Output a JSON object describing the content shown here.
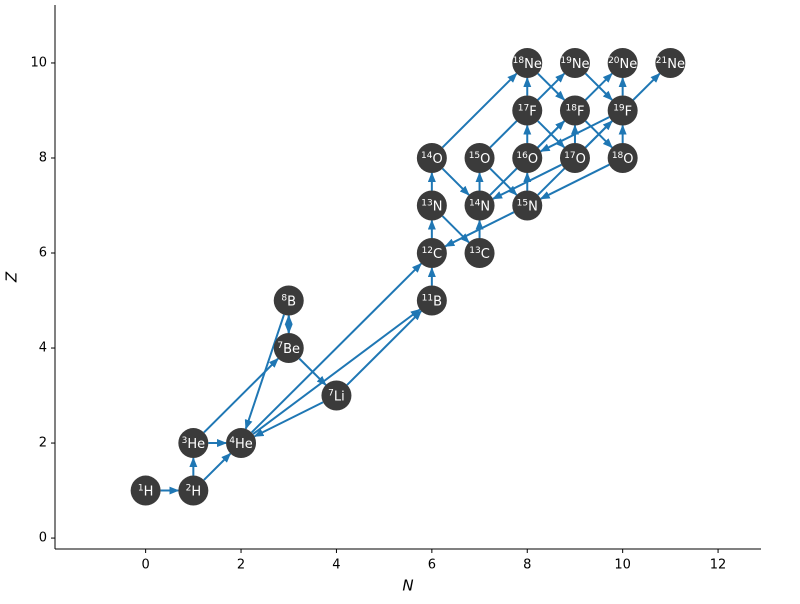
{
  "chart_data": {
    "type": "network",
    "xlabel": "N",
    "ylabel": "Z",
    "xlim": [
      -1.9,
      12.9
    ],
    "ylim": [
      -0.23,
      11.22
    ],
    "xticks": [
      0,
      2,
      4,
      6,
      8,
      10,
      12
    ],
    "yticks": [
      0,
      2,
      4,
      6,
      8,
      10
    ],
    "node_color": "#3b3b3b",
    "edge_color": "#1f77b4",
    "nodes": [
      {
        "mass": 1,
        "element": "H",
        "N": 0,
        "Z": 1
      },
      {
        "mass": 2,
        "element": "H",
        "N": 1,
        "Z": 1
      },
      {
        "mass": 3,
        "element": "He",
        "N": 1,
        "Z": 2
      },
      {
        "mass": 4,
        "element": "He",
        "N": 2,
        "Z": 2
      },
      {
        "mass": 7,
        "element": "Li",
        "N": 4,
        "Z": 3
      },
      {
        "mass": 7,
        "element": "Be",
        "N": 3,
        "Z": 4
      },
      {
        "mass": 8,
        "element": "B",
        "N": 3,
        "Z": 5
      },
      {
        "mass": 11,
        "element": "B",
        "N": 6,
        "Z": 5
      },
      {
        "mass": 12,
        "element": "C",
        "N": 6,
        "Z": 6
      },
      {
        "mass": 13,
        "element": "C",
        "N": 7,
        "Z": 6
      },
      {
        "mass": 13,
        "element": "N",
        "N": 6,
        "Z": 7
      },
      {
        "mass": 14,
        "element": "N",
        "N": 7,
        "Z": 7
      },
      {
        "mass": 15,
        "element": "N",
        "N": 8,
        "Z": 7
      },
      {
        "mass": 14,
        "element": "O",
        "N": 6,
        "Z": 8
      },
      {
        "mass": 15,
        "element": "O",
        "N": 7,
        "Z": 8
      },
      {
        "mass": 16,
        "element": "O",
        "N": 8,
        "Z": 8
      },
      {
        "mass": 17,
        "element": "O",
        "N": 9,
        "Z": 8
      },
      {
        "mass": 17,
        "element": "F",
        "N": 8,
        "Z": 9
      },
      {
        "mass": 18,
        "element": "F",
        "N": 9,
        "Z": 9
      },
      {
        "mass": 19,
        "element": "F",
        "N": 10,
        "Z": 9
      },
      {
        "mass": 18,
        "element": "O",
        "N": 10,
        "Z": 8
      },
      {
        "mass": 18,
        "element": "Ne",
        "N": 8,
        "Z": 10
      },
      {
        "mass": 19,
        "element": "Ne",
        "N": 9,
        "Z": 10
      },
      {
        "mass": 20,
        "element": "Ne",
        "N": 10,
        "Z": 10
      },
      {
        "mass": 21,
        "element": "Ne",
        "N": 11,
        "Z": 10
      }
    ],
    "edges": [
      [
        0,
        1
      ],
      [
        1,
        2
      ],
      [
        1,
        3
      ],
      [
        2,
        3
      ],
      [
        2,
        5
      ],
      [
        5,
        4
      ],
      [
        4,
        3
      ],
      [
        5,
        6
      ],
      [
        6,
        5
      ],
      [
        6,
        3
      ],
      [
        3,
        7
      ],
      [
        4,
        7
      ],
      [
        3,
        8
      ],
      [
        7,
        8
      ],
      [
        8,
        10
      ],
      [
        10,
        9
      ],
      [
        9,
        11
      ],
      [
        11,
        14
      ],
      [
        14,
        12
      ],
      [
        12,
        8
      ],
      [
        12,
        15
      ],
      [
        15,
        17
      ],
      [
        17,
        16
      ],
      [
        16,
        11
      ],
      [
        16,
        18
      ],
      [
        18,
        20
      ],
      [
        20,
        12
      ],
      [
        20,
        19
      ],
      [
        19,
        15
      ],
      [
        19,
        23
      ],
      [
        10,
        13
      ],
      [
        13,
        11
      ],
      [
        13,
        21
      ],
      [
        14,
        22
      ],
      [
        21,
        18
      ],
      [
        22,
        19
      ],
      [
        16,
        24
      ],
      [
        15,
        23
      ],
      [
        17,
        21
      ],
      [
        11,
        18
      ],
      [
        12,
        19
      ]
    ]
  }
}
